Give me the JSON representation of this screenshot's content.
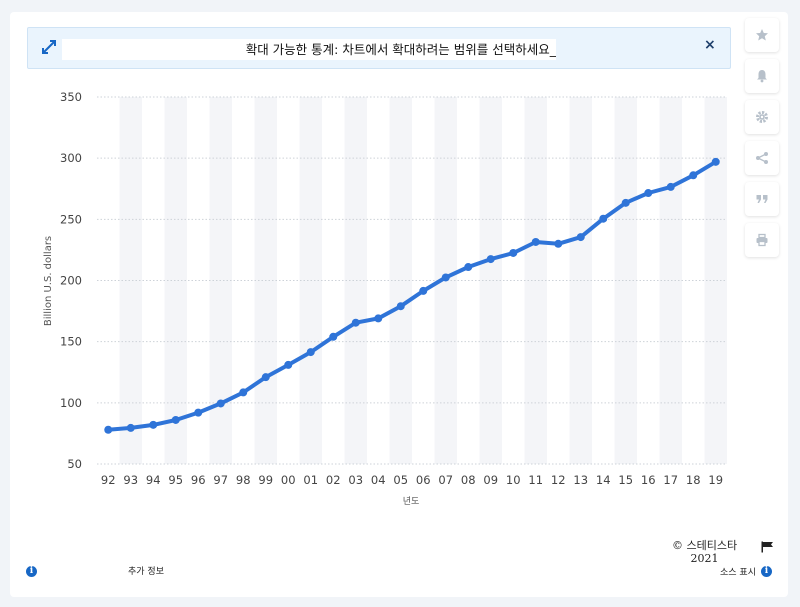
{
  "banner": {
    "text": "확대 가능한 통계: 차트에서 확대하려는 범위를 선택하세요_",
    "close_label": "×",
    "expand_icon": "expand-arrows-icon"
  },
  "toolbar": {
    "icons": [
      "star-icon",
      "bell-icon",
      "gear-icon",
      "share-icon",
      "quote-icon",
      "print-icon"
    ]
  },
  "chart_data": {
    "type": "line",
    "categories": [
      "92",
      "93",
      "94",
      "95",
      "96",
      "97",
      "98",
      "99",
      "00",
      "01",
      "02",
      "03",
      "04",
      "05",
      "06",
      "07",
      "08",
      "09",
      "10",
      "11",
      "12",
      "13",
      "14",
      "15",
      "16",
      "17",
      "18",
      "19"
    ],
    "series": [
      {
        "values": [
          78,
          79.5,
          82,
          86,
          92,
          99.5,
          108.5,
          121,
          131,
          141.5,
          154,
          165.5,
          169,
          179,
          191.5,
          202.5,
          211,
          217.5,
          222.5,
          231.5,
          230,
          235.5,
          250.5,
          263.5,
          271.5,
          276.5,
          286,
          297
        ],
        "color": "#2f74d8"
      }
    ],
    "xlabel": "년도",
    "ylabel": "Billion U.S. dollars",
    "ylim": [
      50,
      350
    ],
    "yticks": [
      50,
      100,
      150,
      200,
      250,
      300,
      350
    ],
    "grid": true
  },
  "footer": {
    "credit_line1": "© 스테티스타",
    "credit_line2": "2021",
    "more_info": "추가 정보",
    "show_source": "소스 표시",
    "flag_icon": "flag-icon",
    "info_icon": "info-icon"
  }
}
